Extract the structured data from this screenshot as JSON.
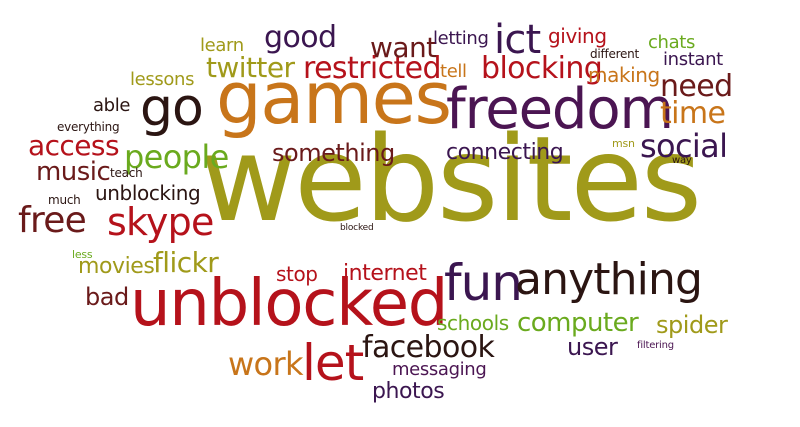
{
  "colors": {
    "olive": "#a09a1a",
    "orange": "#c8751a",
    "purple": "#4b1552",
    "red": "#b5121b",
    "green": "#6aaa1e",
    "dark": "#2b1512",
    "maroon": "#6a1a1a",
    "brown": "#8a4a1a",
    "darkpurple": "#3b1650"
  },
  "words": [
    {
      "id": "websites",
      "text": "websites",
      "color": "olive"
    },
    {
      "id": "games",
      "text": "games",
      "color": "orange"
    },
    {
      "id": "freedom",
      "text": "freedom",
      "color": "purple"
    },
    {
      "id": "unblocked",
      "text": "unblocked",
      "color": "red"
    },
    {
      "id": "fun",
      "text": "fun",
      "color": "darkpurple"
    },
    {
      "id": "anything",
      "text": "anything",
      "color": "dark"
    },
    {
      "id": "go",
      "text": "go",
      "color": "dark"
    },
    {
      "id": "let",
      "text": "let",
      "color": "red"
    },
    {
      "id": "ict",
      "text": "ict",
      "color": "darkpurple"
    },
    {
      "id": "restricted",
      "text": "restricted",
      "color": "red"
    },
    {
      "id": "blocking",
      "text": "blocking",
      "color": "red"
    },
    {
      "id": "twitter",
      "text": "twitter",
      "color": "olive"
    },
    {
      "id": "people",
      "text": "people",
      "color": "green"
    },
    {
      "id": "skype",
      "text": "skype",
      "color": "red"
    },
    {
      "id": "facebook",
      "text": "facebook",
      "color": "dark"
    },
    {
      "id": "free",
      "text": "free",
      "color": "maroon"
    },
    {
      "id": "need",
      "text": "need",
      "color": "maroon"
    },
    {
      "id": "time",
      "text": "time",
      "color": "orange"
    },
    {
      "id": "social",
      "text": "social",
      "color": "darkpurple"
    },
    {
      "id": "good",
      "text": "good",
      "color": "darkpurple"
    },
    {
      "id": "want",
      "text": "want",
      "color": "maroon"
    },
    {
      "id": "work",
      "text": "work",
      "color": "orange"
    },
    {
      "id": "computer",
      "text": "computer",
      "color": "green"
    },
    {
      "id": "access",
      "text": "access",
      "color": "red"
    },
    {
      "id": "music",
      "text": "music",
      "color": "maroon"
    },
    {
      "id": "flickr",
      "text": "flickr",
      "color": "olive"
    },
    {
      "id": "something",
      "text": "something",
      "color": "maroon"
    },
    {
      "id": "connecting",
      "text": "connecting",
      "color": "darkpurple"
    },
    {
      "id": "spider",
      "text": "spider",
      "color": "olive"
    },
    {
      "id": "user",
      "text": "user",
      "color": "darkpurple"
    },
    {
      "id": "movies",
      "text": "movies",
      "color": "olive"
    },
    {
      "id": "internet",
      "text": "internet",
      "color": "red"
    },
    {
      "id": "stop",
      "text": "stop",
      "color": "red"
    },
    {
      "id": "bad",
      "text": "bad",
      "color": "maroon"
    },
    {
      "id": "photos",
      "text": "photos",
      "color": "darkpurple"
    },
    {
      "id": "messaging",
      "text": "messaging",
      "color": "purple"
    },
    {
      "id": "schools",
      "text": "schools",
      "color": "green"
    },
    {
      "id": "unblocking",
      "text": "unblocking",
      "color": "dark"
    },
    {
      "id": "making",
      "text": "making",
      "color": "orange"
    },
    {
      "id": "giving",
      "text": "giving",
      "color": "red"
    },
    {
      "id": "instant",
      "text": "instant",
      "color": "darkpurple"
    },
    {
      "id": "chats",
      "text": "chats",
      "color": "green"
    },
    {
      "id": "learn",
      "text": "learn",
      "color": "olive"
    },
    {
      "id": "lessons",
      "text": "lessons",
      "color": "olive"
    },
    {
      "id": "able",
      "text": "able",
      "color": "dark"
    },
    {
      "id": "letting",
      "text": "letting",
      "color": "darkpurple"
    },
    {
      "id": "tell",
      "text": "tell",
      "color": "orange"
    },
    {
      "id": "different",
      "text": "different",
      "color": "dark"
    },
    {
      "id": "everything",
      "text": "everything",
      "color": "dark"
    },
    {
      "id": "teach",
      "text": "teach",
      "color": "dark"
    },
    {
      "id": "much",
      "text": "much",
      "color": "dark"
    },
    {
      "id": "less",
      "text": "less",
      "color": "green"
    },
    {
      "id": "msn",
      "text": "msn",
      "color": "olive"
    },
    {
      "id": "way",
      "text": "way",
      "color": "dark"
    },
    {
      "id": "blocked",
      "text": "blocked",
      "color": "dark"
    },
    {
      "id": "filtering",
      "text": "filtering",
      "color": "purple"
    }
  ]
}
